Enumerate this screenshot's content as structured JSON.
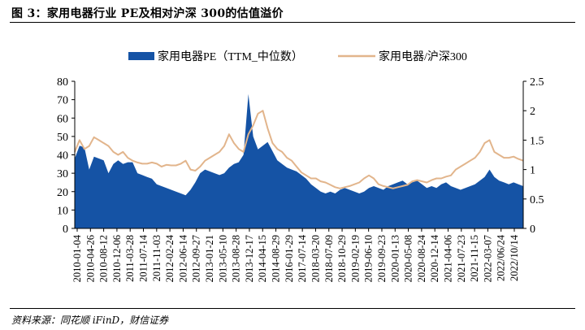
{
  "title": "图 3：家用电器行业 PE及相对沪深 300的估值溢价",
  "source": "资料来源：同花顺 iFinD，财信证券",
  "chart_data": {
    "type": "area",
    "legend_position": "top-center",
    "grid": false,
    "x_tick_labels": [
      "2010-01-04",
      "2010-04-26",
      "2010-08-12",
      "2010-12-06",
      "2011-03-28",
      "2011-07-14",
      "2011-11-03",
      "2012-02-24",
      "2012-06-14",
      "2012-09-27",
      "2013-01-21",
      "2013-05-10",
      "2013-08-28",
      "2013-12-17",
      "2014-04-15",
      "2014-08-29",
      "2016-01-29",
      "2017-07-14",
      "2018-03-20",
      "2018-07-09",
      "2018-10-29",
      "2019-02-19",
      "2019-06-10",
      "2019-09-23",
      "2020-01-13",
      "2020-05-08",
      "2020-08-24",
      "2020-12-14",
      "2021-04-06",
      "2021-07-23",
      "2021-11-15",
      "2022-03-07",
      "2022/06/24",
      "2022/10/14"
    ],
    "left_axis": {
      "ylim": [
        0,
        80
      ],
      "ticks": [
        "0",
        "10",
        "20",
        "30",
        "40",
        "50",
        "60",
        "70",
        "80"
      ]
    },
    "right_axis": {
      "ylim": [
        0,
        2.5
      ],
      "ticks": [
        "0",
        "0.5",
        "1",
        "1.5",
        "2",
        "2.5"
      ]
    },
    "series": [
      {
        "name": "家用电器PE（TTM_中位数）",
        "type": "area",
        "axis": "left",
        "color": "#1553A5",
        "values": [
          38,
          45,
          44,
          32,
          39,
          38,
          37,
          30,
          35,
          37,
          35,
          36,
          36,
          30,
          29,
          28,
          27,
          24,
          23,
          22,
          21,
          20,
          19,
          18,
          21,
          25,
          30,
          32,
          31,
          30,
          29,
          30,
          33,
          35,
          36,
          40,
          73,
          50,
          43,
          45,
          47,
          42,
          37,
          35,
          33,
          32,
          31,
          29,
          27,
          24,
          22,
          20,
          19,
          20,
          19,
          21,
          22,
          21,
          20,
          19,
          20,
          22,
          23,
          22,
          21,
          23,
          24,
          25,
          26,
          24,
          25,
          26,
          24,
          22,
          23,
          22,
          24,
          25,
          23,
          22,
          21,
          22,
          23,
          24,
          26,
          28,
          32,
          28,
          26,
          25,
          24,
          25,
          24,
          23
        ]
      },
      {
        "name": "家用电器/沪深300",
        "type": "line",
        "axis": "right",
        "color": "#E2B58C",
        "values": [
          1.3,
          1.5,
          1.35,
          1.4,
          1.55,
          1.5,
          1.45,
          1.4,
          1.3,
          1.25,
          1.3,
          1.2,
          1.15,
          1.12,
          1.1,
          1.1,
          1.12,
          1.1,
          1.05,
          1.08,
          1.07,
          1.07,
          1.1,
          1.15,
          1.0,
          0.98,
          1.05,
          1.15,
          1.2,
          1.25,
          1.3,
          1.4,
          1.6,
          1.45,
          1.35,
          1.3,
          1.6,
          1.75,
          1.95,
          2.0,
          1.7,
          1.45,
          1.35,
          1.3,
          1.2,
          1.15,
          1.05,
          0.95,
          0.9,
          0.85,
          0.85,
          0.8,
          0.78,
          0.74,
          0.7,
          0.68,
          0.7,
          0.72,
          0.75,
          0.78,
          0.85,
          0.9,
          0.85,
          0.75,
          0.72,
          0.7,
          0.68,
          0.7,
          0.72,
          0.74,
          0.8,
          0.82,
          0.8,
          0.78,
          0.82,
          0.85,
          0.85,
          0.88,
          0.9,
          1.0,
          1.05,
          1.1,
          1.15,
          1.2,
          1.3,
          1.45,
          1.5,
          1.3,
          1.25,
          1.2,
          1.2,
          1.22,
          1.18,
          1.15
        ]
      }
    ]
  }
}
